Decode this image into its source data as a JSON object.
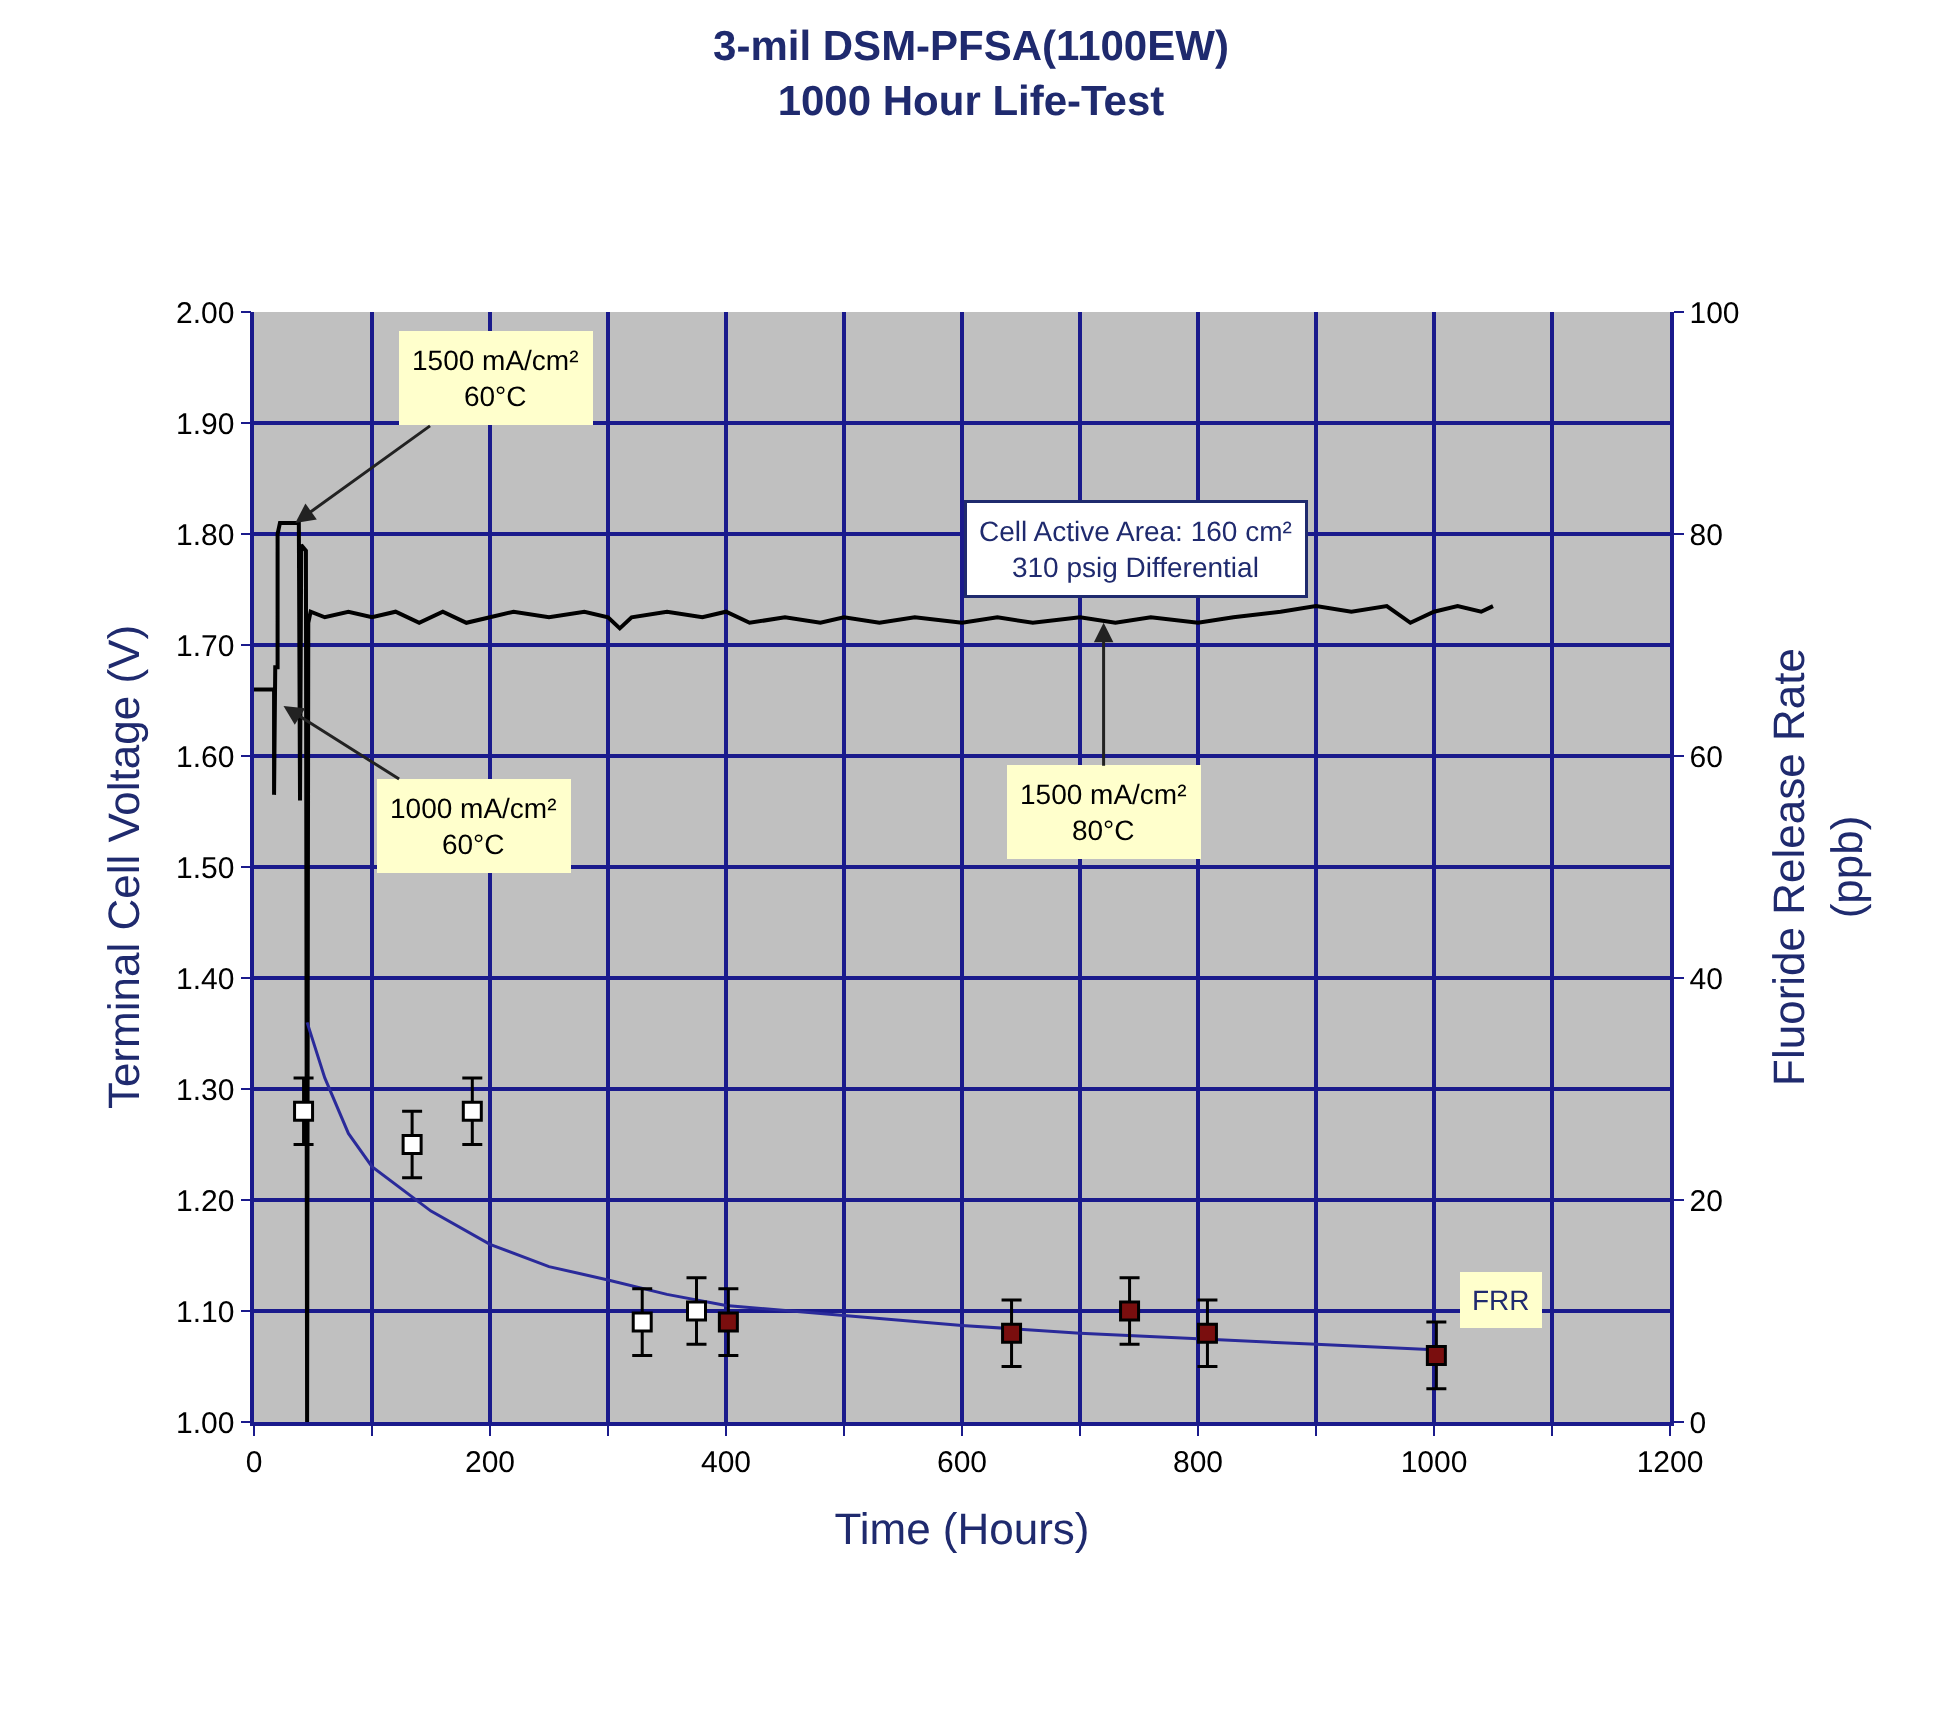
{
  "chart_data": {
    "type": "line",
    "title": "3-mil DSM-PFSA(1100EW)\n1000 Hour Life-Test",
    "xlabel": "Time (Hours)",
    "ylabel": "Terminal Cell Voltage (V)",
    "y2label": "Fluoride Release Rate\n(ppb)",
    "xlim": [
      0,
      1200
    ],
    "xticks": [
      0,
      {
        "value": 100,
        "label": null
      },
      200,
      {
        "value": 300,
        "label": null
      },
      400,
      {
        "value": 500,
        "label": null
      },
      600,
      {
        "value": 700,
        "label": null
      },
      800,
      {
        "value": 900,
        "label": null
      },
      1000,
      {
        "value": 1100,
        "label": null
      },
      1200
    ],
    "ylim": [
      1.0,
      2.0
    ],
    "yticks": [
      {
        "value": 1.0,
        "label": "1.00"
      },
      {
        "value": 1.1,
        "label": "1.10"
      },
      {
        "value": 1.2,
        "label": "1.20"
      },
      {
        "value": 1.3,
        "label": "1.30"
      },
      {
        "value": 1.4,
        "label": "1.40"
      },
      {
        "value": 1.5,
        "label": "1.50"
      },
      {
        "value": 1.6,
        "label": "1.60"
      },
      {
        "value": 1.7,
        "label": "1.70"
      },
      {
        "value": 1.8,
        "label": "1.80"
      },
      {
        "value": 1.9,
        "label": "1.90"
      },
      {
        "value": 2.0,
        "label": "2.00"
      }
    ],
    "y2lim": [
      0,
      100
    ],
    "y2ticks": [
      0,
      20,
      40,
      60,
      80,
      100
    ],
    "grid": true,
    "series": [
      {
        "color": "#000000",
        "marker": "none",
        "x": [
          0,
          17,
          17,
          18,
          20,
          20,
          22,
          38,
          39,
          40,
          44,
          45,
          46,
          48,
          60,
          80,
          100,
          120,
          140,
          160,
          180,
          200,
          220,
          250,
          280,
          300,
          310,
          320,
          350,
          380,
          400,
          420,
          450,
          480,
          500,
          530,
          560,
          600,
          630,
          660,
          700,
          730,
          760,
          800,
          830,
          870,
          900,
          930,
          960,
          980,
          1000,
          1020,
          1040,
          1050
        ],
        "values": [
          1.66,
          1.66,
          1.565,
          1.68,
          1.68,
          1.8,
          1.81,
          1.81,
          1.56,
          1.79,
          1.785,
          1.0,
          1.72,
          1.73,
          1.725,
          1.73,
          1.725,
          1.73,
          1.72,
          1.73,
          1.72,
          1.725,
          1.73,
          1.725,
          1.73,
          1.725,
          1.715,
          1.725,
          1.73,
          1.725,
          1.73,
          1.72,
          1.725,
          1.72,
          1.725,
          1.72,
          1.725,
          1.72,
          1.725,
          1.72,
          1.725,
          1.72,
          1.725,
          1.72,
          1.725,
          1.73,
          1.735,
          1.73,
          1.735,
          1.72,
          1.73,
          1.735,
          1.73,
          1.735
        ]
      },
      {
        "type": "line",
        "axis": "y2",
        "color": "#2a2a9a",
        "marker": "none",
        "x": [
          45,
          60,
          80,
          100,
          150,
          200,
          250,
          300,
          350,
          400,
          500,
          600,
          700,
          800,
          900,
          1000
        ],
        "values": [
          36,
          31,
          26,
          23,
          19,
          16,
          14,
          12.8,
          11.5,
          10.5,
          9.6,
          8.7,
          8,
          7.5,
          7,
          6.5
        ]
      },
      {
        "type": "scatter",
        "axis": "y2",
        "color": "#ffffff",
        "marker": "square",
        "x": [
          42,
          134,
          185,
          329,
          375
        ],
        "values": [
          28,
          25,
          28,
          9,
          10
        ],
        "errors": [
          3,
          3,
          3,
          3,
          3
        ]
      },
      {
        "type": "scatter",
        "axis": "y2",
        "color": "#7a0e0e",
        "marker": "square",
        "x": [
          402,
          642,
          742,
          808,
          1002
        ],
        "values": [
          9,
          8,
          10,
          8,
          6
        ],
        "errors": [
          3,
          3,
          3,
          3,
          3
        ]
      }
    ],
    "annotations": [
      {
        "text": "1500 mA/cm²\n60°C",
        "x": 35,
        "y": 1.81
      },
      {
        "text": "1000 mA/cm²\n60°C",
        "x": 25,
        "y": 1.645
      },
      {
        "text": "1500 mA/cm²\n80°C",
        "x": 720,
        "y": 1.72
      },
      "Cell Active Area: 160 cm²\n310 psig Differential",
      "FRR"
    ]
  }
}
